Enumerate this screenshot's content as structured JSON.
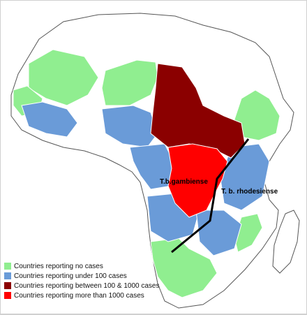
{
  "legend": [
    {
      "label": "Countries reporting no cases",
      "color": "#90ee90"
    },
    {
      "label": "Countries reporting under 100 cases",
      "color": "#6a9bd8"
    },
    {
      "label": "Countries reporting between 100 & 1000 cases",
      "color": "#8b0000"
    },
    {
      "label": "Countries reporting more than 1000 cases",
      "color": "#ff0000"
    }
  ],
  "labels": {
    "gambiense": "T.b.gambiense",
    "rhodesiense": "T. b. rhodesiense"
  },
  "colors": {
    "border": "#ffffff",
    "outline": "#555555",
    "ocean": "#ffffff",
    "divide_line": "#000000",
    "unshaded": "#ffffff"
  }
}
